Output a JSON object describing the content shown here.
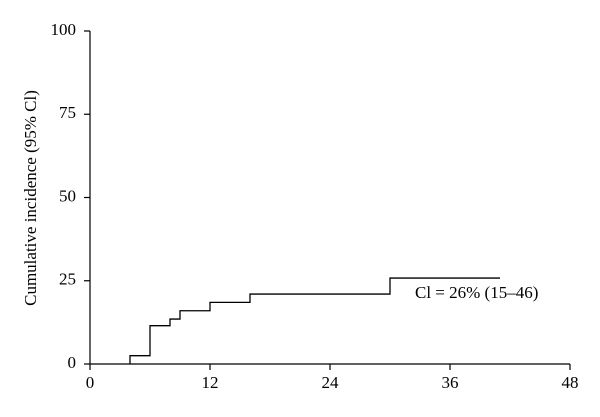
{
  "chart_data": {
    "type": "step",
    "y_label": "Cumulative incidence (95% Cl)",
    "x": [
      4,
      4,
      6,
      8,
      9,
      12,
      16,
      30,
      41
    ],
    "values": [
      0,
      2.5,
      11.5,
      13.5,
      16,
      18.5,
      21,
      25.8,
      25.8
    ],
    "color": "#000000",
    "xlim": [
      0,
      48
    ],
    "xticks": [
      0,
      12,
      24,
      36,
      48
    ],
    "ylim": [
      0,
      100
    ],
    "yticks": [
      0,
      25,
      50,
      75,
      100
    ],
    "annotation": "Cl = 26% (15–46)"
  }
}
